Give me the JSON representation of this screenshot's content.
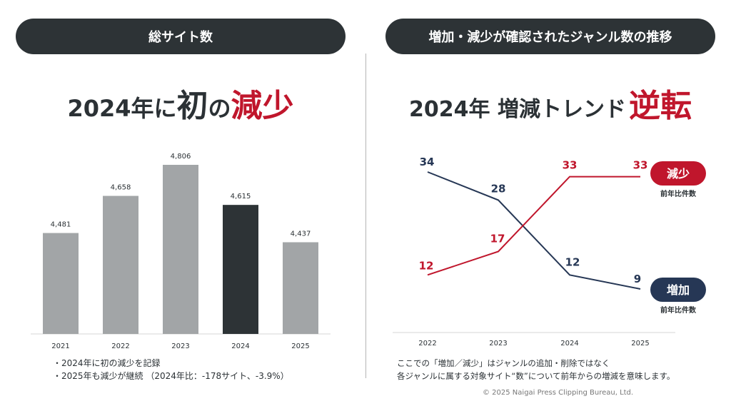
{
  "left_panel": {
    "header": "総サイト数",
    "headline": {
      "part1": "2024年に",
      "part2": "初",
      "part3": "の",
      "part4": "減少"
    },
    "notes": [
      "・2024年に初の減少を記録",
      "・2025年も減少が継続 （2024年比：-178サイト、-3.9%）"
    ]
  },
  "right_panel": {
    "header": "増加・減少が確認されたジャンル数の推移",
    "headline": {
      "part1": "2024年 増減トレンド",
      "part2": "逆転"
    },
    "legend": {
      "decrease_label": "減少",
      "decrease_sub": "前年比件数",
      "increase_label": "増加",
      "increase_sub": "前年比件数"
    },
    "notes": [
      "ここでの「増加／減少」はジャンルの追加・削除ではなく",
      "各ジャンルに属する対象サイト“数”について前年からの増減を意味します。"
    ]
  },
  "copyright": "© 2025 Naigai Press Clipping Bureau, Ltd.",
  "colors": {
    "dark": "#2d3336",
    "bar_gray": "#a2a5a7",
    "red": "#c0162c",
    "navy": "#263755"
  },
  "chart_data": [
    {
      "type": "bar",
      "categories": [
        "2021",
        "2022",
        "2023",
        "2024",
        "2025"
      ],
      "values": [
        4481,
        4658,
        4806,
        4615,
        4437
      ],
      "value_labels": [
        "4,481",
        "4,658",
        "4,806",
        "4,615",
        "4,437"
      ],
      "highlight": "2024"
    },
    {
      "type": "line",
      "categories": [
        "2022",
        "2023",
        "2024",
        "2025"
      ],
      "series": [
        {
          "name": "増加",
          "values": [
            34,
            28,
            12,
            9
          ],
          "color": "#263755"
        },
        {
          "name": "減少",
          "values": [
            12,
            17,
            33,
            33
          ],
          "color": "#c0162c"
        }
      ]
    }
  ]
}
